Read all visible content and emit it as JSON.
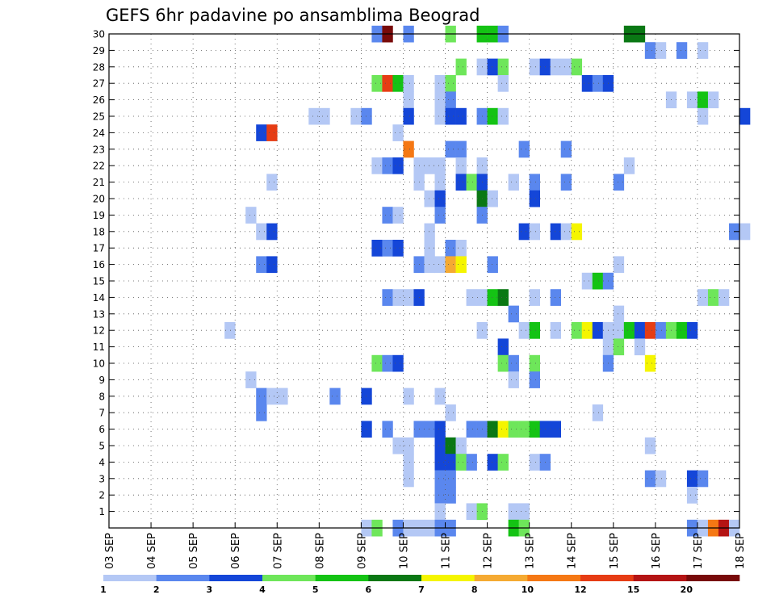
{
  "chart_data": {
    "type": "heatmap",
    "title": "GEFS 6hr padavine po ansamblima Beograd",
    "xlabel": "",
    "ylabel": "",
    "x_ticks": [
      "03 SEP",
      "04 SEP",
      "05 SEP",
      "06 SEP",
      "07 SEP",
      "08 SEP",
      "09 SEP",
      "10 SEP",
      "11 SEP",
      "12 SEP",
      "13 SEP",
      "14 SEP",
      "15 SEP",
      "16 SEP",
      "17 SEP",
      "18 SEP"
    ],
    "xlim": [
      0,
      15
    ],
    "ylim": [
      0,
      30
    ],
    "y_ticks": [
      1,
      2,
      3,
      4,
      5,
      6,
      7,
      8,
      9,
      10,
      11,
      12,
      13,
      14,
      15,
      16,
      17,
      18,
      19,
      20,
      21,
      22,
      23,
      24,
      25,
      26,
      27,
      28,
      29,
      30
    ],
    "grid": true,
    "legend": {
      "placement": "bottom",
      "labels": [
        "1",
        "2",
        "3",
        "4",
        "5",
        "6",
        "7",
        "8",
        "10",
        "12",
        "15",
        "20"
      ],
      "colors": [
        "#b4c8f5",
        "#5a87ee",
        "#1446d8",
        "#6ee65a",
        "#14c314",
        "#0a7814",
        "#f5f500",
        "#f5aa32",
        "#f57814",
        "#e63c14",
        "#b41414",
        "#780a0a"
      ]
    },
    "cells": [
      [
        6.25,
        30,
        1
      ],
      [
        6.5,
        30,
        11
      ],
      [
        7,
        30,
        1
      ],
      [
        8,
        30,
        3
      ],
      [
        8.75,
        30,
        4
      ],
      [
        9,
        30,
        4
      ],
      [
        9.25,
        30,
        1
      ],
      [
        12.25,
        30,
        5
      ],
      [
        12.5,
        30,
        5
      ],
      [
        12.75,
        29,
        1
      ],
      [
        13,
        29,
        0
      ],
      [
        13.5,
        29,
        1
      ],
      [
        14,
        29,
        0
      ],
      [
        8.25,
        28,
        3
      ],
      [
        8.75,
        28,
        0
      ],
      [
        9,
        28,
        2
      ],
      [
        9.25,
        28,
        3
      ],
      [
        10,
        28,
        0
      ],
      [
        10.25,
        28,
        2
      ],
      [
        10.5,
        28,
        0
      ],
      [
        10.75,
        28,
        0
      ],
      [
        11,
        28,
        3
      ],
      [
        6.25,
        27,
        3
      ],
      [
        6.5,
        27,
        9
      ],
      [
        6.75,
        27,
        4
      ],
      [
        7,
        27,
        0
      ],
      [
        7.75,
        27,
        0
      ],
      [
        8,
        27,
        3
      ],
      [
        9.25,
        27,
        0
      ],
      [
        11.25,
        27,
        2
      ],
      [
        11.5,
        27,
        1
      ],
      [
        11.75,
        27,
        2
      ],
      [
        7,
        26,
        0
      ],
      [
        7.75,
        26,
        0
      ],
      [
        8,
        26,
        1
      ],
      [
        13.25,
        26,
        0
      ],
      [
        13.75,
        26,
        0
      ],
      [
        14,
        26,
        4
      ],
      [
        14.25,
        26,
        0
      ],
      [
        4.75,
        25,
        0
      ],
      [
        5,
        25,
        0
      ],
      [
        5.75,
        25,
        0
      ],
      [
        6,
        25,
        1
      ],
      [
        7,
        25,
        2
      ],
      [
        7.75,
        25,
        0
      ],
      [
        8,
        25,
        2
      ],
      [
        8.25,
        25,
        2
      ],
      [
        8.75,
        25,
        1
      ],
      [
        9,
        25,
        4
      ],
      [
        9.25,
        25,
        0
      ],
      [
        14,
        25,
        0
      ],
      [
        15,
        25,
        2
      ],
      [
        3.5,
        24,
        2
      ],
      [
        3.75,
        24,
        9
      ],
      [
        6.75,
        24,
        0
      ],
      [
        7,
        23,
        8
      ],
      [
        8,
        23,
        1
      ],
      [
        8.25,
        23,
        1
      ],
      [
        9.75,
        23,
        1
      ],
      [
        10.75,
        23,
        1
      ],
      [
        6.25,
        22,
        0
      ],
      [
        6.5,
        22,
        1
      ],
      [
        6.75,
        22,
        2
      ],
      [
        7.25,
        22,
        0
      ],
      [
        7.5,
        22,
        0
      ],
      [
        7.75,
        22,
        0
      ],
      [
        8.25,
        22,
        0
      ],
      [
        8.75,
        22,
        0
      ],
      [
        12.25,
        22,
        0
      ],
      [
        3.75,
        21,
        0
      ],
      [
        7.25,
        21,
        0
      ],
      [
        7.75,
        21,
        0
      ],
      [
        8.25,
        21,
        2
      ],
      [
        8.5,
        21,
        3
      ],
      [
        8.75,
        21,
        2
      ],
      [
        9.5,
        21,
        0
      ],
      [
        10,
        21,
        1
      ],
      [
        10.75,
        21,
        1
      ],
      [
        12,
        21,
        1
      ],
      [
        7.5,
        20,
        0
      ],
      [
        7.75,
        20,
        2
      ],
      [
        8.75,
        20,
        5
      ],
      [
        9,
        20,
        0
      ],
      [
        10,
        20,
        2
      ],
      [
        3.25,
        19,
        0
      ],
      [
        6.5,
        19,
        1
      ],
      [
        6.75,
        19,
        0
      ],
      [
        7.75,
        19,
        1
      ],
      [
        8.75,
        19,
        1
      ],
      [
        3.5,
        18,
        0
      ],
      [
        3.75,
        18,
        2
      ],
      [
        7.5,
        18,
        0
      ],
      [
        9.75,
        18,
        2
      ],
      [
        10,
        18,
        0
      ],
      [
        10.5,
        18,
        2
      ],
      [
        10.75,
        18,
        0
      ],
      [
        11,
        18,
        6
      ],
      [
        14.75,
        18,
        1
      ],
      [
        15,
        18,
        0
      ],
      [
        6.25,
        17,
        2
      ],
      [
        6.5,
        17,
        1
      ],
      [
        6.75,
        17,
        2
      ],
      [
        7.5,
        17,
        0
      ],
      [
        8,
        17,
        1
      ],
      [
        8.25,
        17,
        0
      ],
      [
        3.5,
        16,
        1
      ],
      [
        3.75,
        16,
        2
      ],
      [
        7.25,
        16,
        1
      ],
      [
        7.5,
        16,
        0
      ],
      [
        7.75,
        16,
        0
      ],
      [
        8,
        16,
        7
      ],
      [
        8.25,
        16,
        6
      ],
      [
        9,
        16,
        1
      ],
      [
        12,
        16,
        0
      ],
      [
        11.25,
        15,
        0
      ],
      [
        11.5,
        15,
        4
      ],
      [
        11.75,
        15,
        1
      ],
      [
        6.5,
        14,
        1
      ],
      [
        6.75,
        14,
        0
      ],
      [
        7,
        14,
        0
      ],
      [
        7.25,
        14,
        2
      ],
      [
        8.5,
        14,
        0
      ],
      [
        8.75,
        14,
        0
      ],
      [
        9,
        14,
        4
      ],
      [
        9.25,
        14,
        5
      ],
      [
        10,
        14,
        0
      ],
      [
        10.5,
        14,
        1
      ],
      [
        14,
        14,
        0
      ],
      [
        14.25,
        14,
        3
      ],
      [
        14.5,
        14,
        0
      ],
      [
        9.5,
        13,
        1
      ],
      [
        12,
        13,
        0
      ],
      [
        2.75,
        12,
        0
      ],
      [
        8.75,
        12,
        0
      ],
      [
        9.75,
        12,
        0
      ],
      [
        10,
        12,
        4
      ],
      [
        10.5,
        12,
        0
      ],
      [
        11,
        12,
        3
      ],
      [
        11.25,
        12,
        6
      ],
      [
        11.5,
        12,
        2
      ],
      [
        11.75,
        12,
        0
      ],
      [
        12,
        12,
        0
      ],
      [
        12.25,
        12,
        4
      ],
      [
        12.5,
        12,
        2
      ],
      [
        12.75,
        12,
        9
      ],
      [
        13,
        12,
        1
      ],
      [
        13.25,
        12,
        3
      ],
      [
        13.5,
        12,
        4
      ],
      [
        13.75,
        12,
        2
      ],
      [
        9.25,
        11,
        2
      ],
      [
        11.75,
        11,
        0
      ],
      [
        12,
        11,
        3
      ],
      [
        12.5,
        11,
        0
      ],
      [
        6.25,
        10,
        3
      ],
      [
        6.5,
        10,
        1
      ],
      [
        6.75,
        10,
        2
      ],
      [
        9.25,
        10,
        3
      ],
      [
        9.5,
        10,
        1
      ],
      [
        10,
        10,
        3
      ],
      [
        11.75,
        10,
        1
      ],
      [
        12.75,
        10,
        6
      ],
      [
        3.25,
        9,
        0
      ],
      [
        9.5,
        9,
        0
      ],
      [
        10,
        9,
        1
      ],
      [
        3.5,
        8,
        1
      ],
      [
        3.75,
        8,
        0
      ],
      [
        4,
        8,
        0
      ],
      [
        5.25,
        8,
        1
      ],
      [
        6,
        8,
        2
      ],
      [
        7,
        8,
        0
      ],
      [
        7.75,
        8,
        0
      ],
      [
        3.5,
        7,
        1
      ],
      [
        8,
        7,
        0
      ],
      [
        11.5,
        7,
        0
      ],
      [
        6,
        6,
        2
      ],
      [
        6.5,
        6,
        1
      ],
      [
        7.25,
        6,
        1
      ],
      [
        7.5,
        6,
        1
      ],
      [
        7.75,
        6,
        2
      ],
      [
        8.5,
        6,
        1
      ],
      [
        8.75,
        6,
        1
      ],
      [
        9,
        6,
        5
      ],
      [
        9.25,
        6,
        6
      ],
      [
        9.5,
        6,
        3
      ],
      [
        9.75,
        6,
        3
      ],
      [
        10,
        6,
        4
      ],
      [
        10.25,
        6,
        2
      ],
      [
        10.5,
        6,
        2
      ],
      [
        6.75,
        5,
        0
      ],
      [
        7,
        5,
        0
      ],
      [
        7.75,
        5,
        2
      ],
      [
        8,
        5,
        5
      ],
      [
        8.25,
        5,
        0
      ],
      [
        12.75,
        5,
        0
      ],
      [
        7,
        4,
        0
      ],
      [
        7.75,
        4,
        2
      ],
      [
        8,
        4,
        2
      ],
      [
        8.25,
        4,
        3
      ],
      [
        8.5,
        4,
        1
      ],
      [
        9,
        4,
        2
      ],
      [
        9.25,
        4,
        3
      ],
      [
        10,
        4,
        0
      ],
      [
        10.25,
        4,
        1
      ],
      [
        7,
        3,
        0
      ],
      [
        7.75,
        3,
        1
      ],
      [
        8,
        3,
        1
      ],
      [
        12.75,
        3,
        1
      ],
      [
        13,
        3,
        0
      ],
      [
        13.75,
        3,
        2
      ],
      [
        14,
        3,
        1
      ],
      [
        7.75,
        2,
        1
      ],
      [
        8,
        2,
        1
      ],
      [
        13.75,
        2,
        0
      ],
      [
        7.75,
        1,
        0
      ],
      [
        8.5,
        1,
        0
      ],
      [
        8.75,
        1,
        3
      ],
      [
        9.5,
        1,
        0
      ],
      [
        9.75,
        1,
        0
      ],
      [
        6,
        0,
        0
      ],
      [
        6.25,
        0,
        3
      ],
      [
        6.75,
        0,
        1
      ],
      [
        7,
        0,
        0
      ],
      [
        7.25,
        0,
        0
      ],
      [
        7.5,
        0,
        0
      ],
      [
        7.75,
        0,
        1
      ],
      [
        8,
        0,
        1
      ],
      [
        9.5,
        0,
        4
      ],
      [
        9.75,
        0,
        3
      ],
      [
        13.75,
        0,
        1
      ],
      [
        14,
        0,
        0
      ],
      [
        14.25,
        0,
        8
      ],
      [
        14.5,
        0,
        10
      ],
      [
        14.75,
        0,
        0
      ]
    ]
  }
}
